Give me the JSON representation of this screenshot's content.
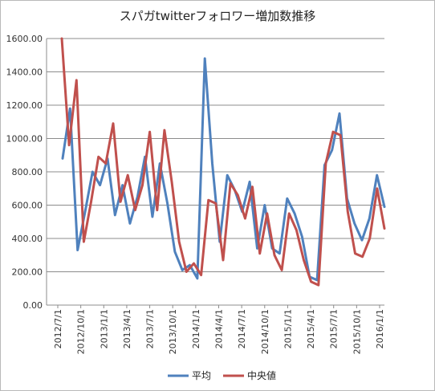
{
  "chart_data": {
    "type": "line",
    "title": "スパガtwitterフォロワー増加数推移",
    "xlabel": "",
    "ylabel": "",
    "ylim": [
      0,
      1600
    ],
    "y_ticks": [
      "0.00",
      "200.00",
      "400.00",
      "600.00",
      "800.00",
      "1000.00",
      "1200.00",
      "1400.00",
      "1600.00"
    ],
    "x_ticks": [
      "2012/7/1",
      "2012/10/1",
      "2013/1/1",
      "2013/4/1",
      "2013/7/1",
      "2013/10/1",
      "2014/1/1",
      "2014/4/1",
      "2014/7/1",
      "2014/10/1",
      "2015/1/1",
      "2015/4/1",
      "2015/7/1",
      "2015/10/1",
      "2016/1/1"
    ],
    "grid": true,
    "legend_position": "bottom",
    "series": [
      {
        "name": "平均",
        "color": "#4f81bd",
        "values": [
          880,
          1180,
          330,
          560,
          800,
          720,
          880,
          540,
          720,
          490,
          650,
          890,
          530,
          850,
          610,
          320,
          210,
          240,
          160,
          1480,
          850,
          380,
          780,
          690,
          560,
          740,
          340,
          600,
          340,
          310,
          640,
          550,
          410,
          170,
          150,
          840,
          930,
          1150,
          640,
          490,
          390,
          520,
          780,
          590
        ]
      },
      {
        "name": "中央値",
        "color": "#c0504d",
        "values": [
          1600,
          960,
          1350,
          380,
          620,
          890,
          850,
          1090,
          620,
          780,
          570,
          720,
          1040,
          570,
          1050,
          740,
          380,
          200,
          250,
          180,
          630,
          610,
          270,
          730,
          660,
          520,
          710,
          310,
          550,
          300,
          210,
          550,
          450,
          270,
          140,
          120,
          850,
          1040,
          1020,
          560,
          310,
          290,
          400,
          700,
          460
        ]
      }
    ]
  }
}
